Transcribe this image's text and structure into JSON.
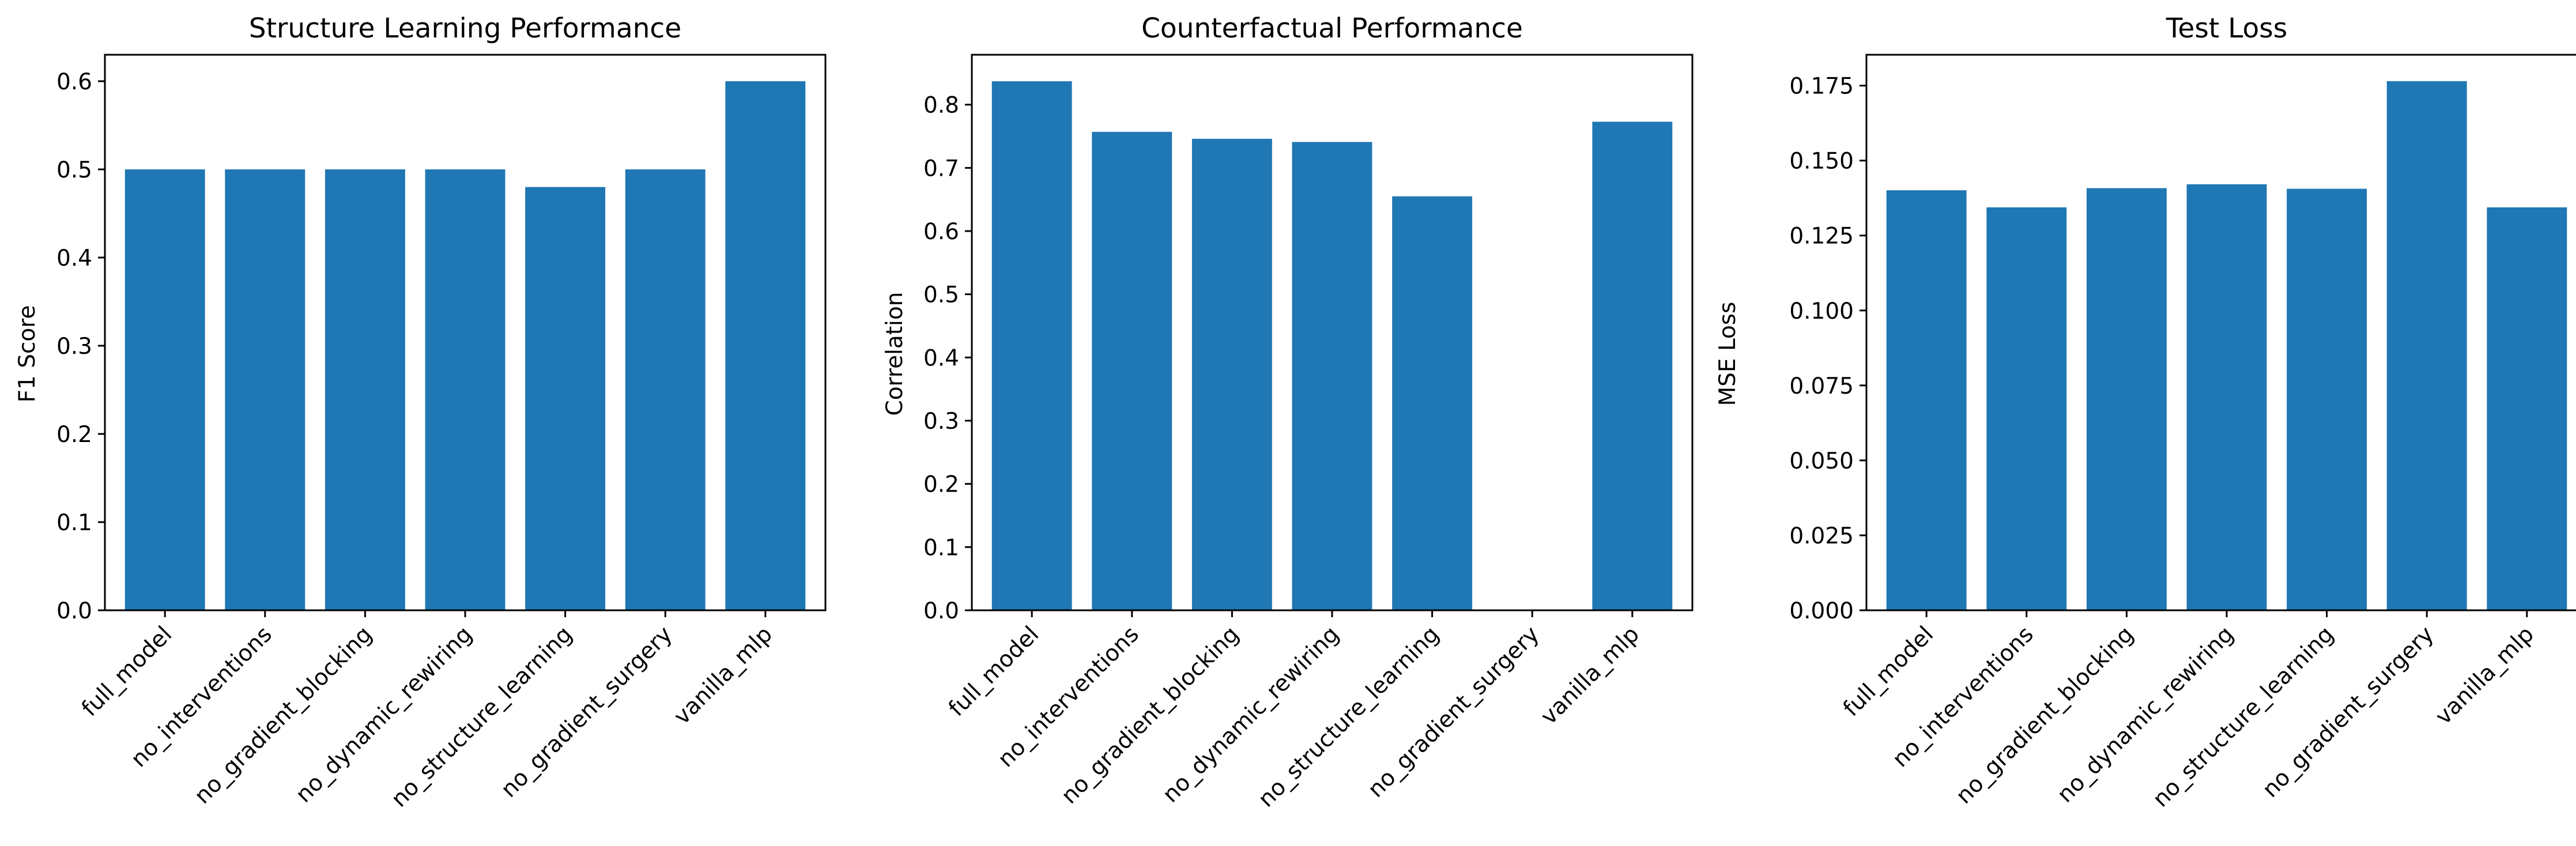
{
  "chart_data": [
    {
      "type": "bar",
      "title": "Structure Learning Performance",
      "xlabel": "",
      "ylabel": "F1 Score",
      "categories": [
        "full_model",
        "no_interventions",
        "no_gradient_blocking",
        "no_dynamic_rewiring",
        "no_structure_learning",
        "no_gradient_surgery",
        "vanilla_mlp"
      ],
      "values": [
        0.5,
        0.5,
        0.5,
        0.5,
        0.48,
        0.5,
        0.6
      ],
      "ylim": [
        0,
        0.63
      ],
      "yticks": [
        0.0,
        0.1,
        0.2,
        0.3,
        0.4,
        0.5,
        0.6
      ],
      "ytick_labels": [
        "0.0",
        "0.1",
        "0.2",
        "0.3",
        "0.4",
        "0.5",
        "0.6"
      ],
      "color": "#1f77b4",
      "grid": false
    },
    {
      "type": "bar",
      "title": "Counterfactual Performance",
      "xlabel": "",
      "ylabel": "Correlation",
      "categories": [
        "full_model",
        "no_interventions",
        "no_gradient_blocking",
        "no_dynamic_rewiring",
        "no_structure_learning",
        "no_gradient_surgery",
        "vanilla_mlp"
      ],
      "values": [
        0.837,
        0.757,
        0.746,
        0.741,
        0.655,
        0.0,
        0.773
      ],
      "ylim": [
        0,
        0.879
      ],
      "yticks": [
        0.0,
        0.1,
        0.2,
        0.3,
        0.4,
        0.5,
        0.6,
        0.7,
        0.8
      ],
      "ytick_labels": [
        "0.0",
        "0.1",
        "0.2",
        "0.3",
        "0.4",
        "0.5",
        "0.6",
        "0.7",
        "0.8"
      ],
      "color": "#1f77b4",
      "grid": false
    },
    {
      "type": "bar",
      "title": "Test Loss",
      "xlabel": "",
      "ylabel": "MSE Loss",
      "categories": [
        "full_model",
        "no_interventions",
        "no_gradient_blocking",
        "no_dynamic_rewiring",
        "no_structure_learning",
        "no_gradient_surgery",
        "vanilla_mlp"
      ],
      "values": [
        0.1401,
        0.1344,
        0.1408,
        0.1421,
        0.1406,
        0.1765,
        0.1344
      ],
      "ylim": [
        0,
        0.1853
      ],
      "yticks": [
        0.0,
        0.025,
        0.05,
        0.075,
        0.1,
        0.125,
        0.15,
        0.175
      ],
      "ytick_labels": [
        "0.000",
        "0.025",
        "0.050",
        "0.075",
        "0.100",
        "0.125",
        "0.150",
        "0.175"
      ],
      "color": "#1f77b4",
      "grid": false
    }
  ]
}
